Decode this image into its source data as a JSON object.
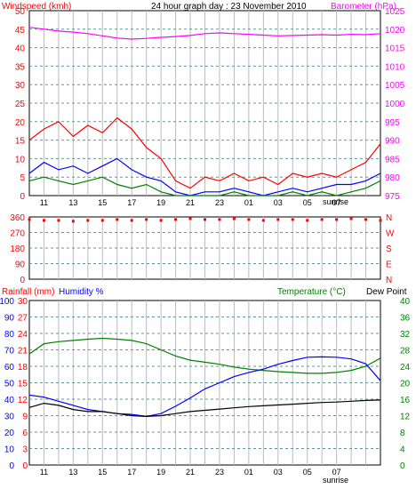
{
  "chart_data": [
    {
      "type": "line",
      "title": "24 hour graph day : 23 November 2010",
      "left_axis_label": "Windspeed (kmh)",
      "right_axis_label": "Barometer (hPa)",
      "left_ylim": [
        0,
        50
      ],
      "left_ticks": [
        "0",
        "5",
        "10",
        "15",
        "20",
        "25",
        "30",
        "35",
        "40",
        "45",
        "50"
      ],
      "right_ylim": [
        975,
        1025
      ],
      "right_ticks": [
        "975",
        "980",
        "985",
        "990",
        "995",
        "1000",
        "1005",
        "1010",
        "1015",
        "1020",
        "1025"
      ],
      "x_ticks": [
        "11",
        "13",
        "15",
        "17",
        "19",
        "21",
        "23",
        "01",
        "03",
        "05",
        "07"
      ],
      "annotation": "sunrise",
      "grid": true,
      "series": [
        {
          "color": "#ff00ff",
          "axis": "right",
          "x": [
            0,
            1,
            2,
            3,
            4,
            5,
            6,
            7,
            8,
            9,
            10,
            11,
            12,
            13,
            14,
            15,
            16,
            17,
            18,
            19,
            20,
            21,
            22,
            23,
            24
          ],
          "values": [
            1020.5,
            1020.0,
            1019.5,
            1019.2,
            1018.8,
            1018.2,
            1017.6,
            1017.3,
            1017.5,
            1017.8,
            1018.0,
            1018.3,
            1018.8,
            1019.0,
            1018.8,
            1018.6,
            1018.4,
            1018.2,
            1018.3,
            1018.4,
            1018.5,
            1018.4,
            1018.6,
            1018.5,
            1018.8
          ]
        },
        {
          "color": "#ff0000",
          "axis": "left",
          "x": [
            0,
            1,
            2,
            3,
            4,
            5,
            6,
            7,
            8,
            9,
            10,
            11,
            12,
            13,
            14,
            15,
            16,
            17,
            18,
            19,
            20,
            21,
            22,
            23,
            24
          ],
          "values": [
            15,
            18,
            20,
            16,
            19,
            17,
            21,
            18,
            13,
            10,
            4,
            2,
            5,
            4,
            6,
            4,
            5,
            3,
            6,
            5,
            6,
            5,
            7,
            9,
            14
          ]
        },
        {
          "color": "#0000ff",
          "axis": "left",
          "x": [
            0,
            1,
            2,
            3,
            4,
            5,
            6,
            7,
            8,
            9,
            10,
            11,
            12,
            13,
            14,
            15,
            16,
            17,
            18,
            19,
            20,
            21,
            22,
            23,
            24
          ],
          "values": [
            6,
            9,
            7,
            8,
            6,
            8,
            10,
            7,
            5,
            4,
            1,
            0,
            1,
            1,
            2,
            1,
            0,
            1,
            2,
            1,
            2,
            3,
            3,
            4,
            6
          ]
        },
        {
          "color": "#008000",
          "axis": "left",
          "x": [
            0,
            1,
            2,
            3,
            4,
            5,
            6,
            7,
            8,
            9,
            10,
            11,
            12,
            13,
            14,
            15,
            16,
            17,
            18,
            19,
            20,
            21,
            22,
            23,
            24
          ],
          "values": [
            4,
            5,
            4,
            3,
            4,
            5,
            3,
            2,
            3,
            1,
            0,
            0,
            0,
            0,
            1,
            0,
            0,
            0,
            1,
            0,
            1,
            0,
            1,
            2,
            4
          ]
        }
      ]
    },
    {
      "type": "scatter",
      "left_ylim": [
        0,
        360
      ],
      "left_ticks": [
        "0",
        "90",
        "180",
        "270",
        "360"
      ],
      "right_ticks": [
        "N",
        "E",
        "S",
        "W",
        "N"
      ],
      "grid": true,
      "series": [
        {
          "color": "#ff0000",
          "x": [
            0,
            1,
            2,
            3,
            4,
            5,
            6,
            7,
            8,
            9,
            10,
            11,
            12,
            13,
            14,
            15,
            16,
            17,
            18,
            19,
            20,
            21,
            22,
            23,
            24
          ],
          "values": [
            345,
            340,
            340,
            335,
            340,
            340,
            345,
            340,
            345,
            340,
            345,
            350,
            345,
            345,
            350,
            345,
            340,
            345,
            345,
            340,
            345,
            345,
            350,
            345,
            340
          ]
        }
      ]
    },
    {
      "type": "line",
      "left_axis_label": "Rainfall (mm)",
      "left_axis_label2": "Humidity %",
      "right_axis_label": "Temperature (°C)",
      "right_axis_label2": "Dew Point",
      "humidity_ticks": [
        "0",
        "10",
        "20",
        "30",
        "40",
        "50",
        "60",
        "70",
        "80",
        "90",
        "100"
      ],
      "rain_ticks": [
        "0",
        "3",
        "6",
        "9",
        "12",
        "15",
        "18",
        "21",
        "24",
        "27",
        "30"
      ],
      "right_ylim": [
        0,
        40
      ],
      "right_ticks": [
        "0",
        "4",
        "8",
        "12",
        "16",
        "20",
        "24",
        "28",
        "32",
        "36",
        "40"
      ],
      "x_ticks": [
        "11",
        "13",
        "15",
        "17",
        "19",
        "21",
        "23",
        "01",
        "03",
        "05",
        "07"
      ],
      "annotation": "sunrise",
      "grid": true,
      "series": [
        {
          "color": "#008000",
          "axis": "right",
          "x": [
            0,
            1,
            2,
            3,
            4,
            5,
            6,
            7,
            8,
            9,
            10,
            11,
            12,
            13,
            14,
            15,
            16,
            17,
            18,
            19,
            20,
            21,
            22,
            23,
            24
          ],
          "values": [
            27,
            29.5,
            30,
            30.3,
            30.6,
            30.8,
            30.6,
            30.3,
            29.5,
            28,
            26.5,
            25.5,
            25,
            24.5,
            23.8,
            23.3,
            23,
            22.7,
            22.5,
            22.3,
            22.3,
            22.5,
            23,
            24,
            26
          ]
        },
        {
          "color": "#0000ff",
          "axis": "right",
          "x": [
            0,
            1,
            2,
            3,
            4,
            5,
            6,
            7,
            8,
            9,
            10,
            11,
            12,
            13,
            14,
            15,
            16,
            17,
            18,
            19,
            20,
            21,
            22,
            23,
            24
          ],
          "values": [
            17,
            16.5,
            15.5,
            14.5,
            13.5,
            13,
            12.5,
            12.3,
            11.8,
            12.5,
            14.3,
            16.3,
            18.5,
            20,
            21.5,
            22.5,
            23.3,
            24.5,
            25.4,
            26.2,
            26.3,
            26.2,
            25.8,
            24.6,
            20.5
          ]
        },
        {
          "color": "#000000",
          "axis": "right",
          "x": [
            0,
            1,
            2,
            3,
            4,
            5,
            6,
            7,
            8,
            9,
            10,
            11,
            12,
            13,
            14,
            15,
            16,
            17,
            18,
            19,
            20,
            21,
            22,
            23,
            24
          ],
          "values": [
            14,
            15,
            14.5,
            13.5,
            13,
            13,
            12.5,
            12,
            11.8,
            12,
            12.5,
            13,
            13.3,
            13.6,
            13.9,
            14.2,
            14.4,
            14.6,
            14.8,
            15,
            15.2,
            15.3,
            15.5,
            15.7,
            15.8
          ]
        }
      ]
    }
  ]
}
